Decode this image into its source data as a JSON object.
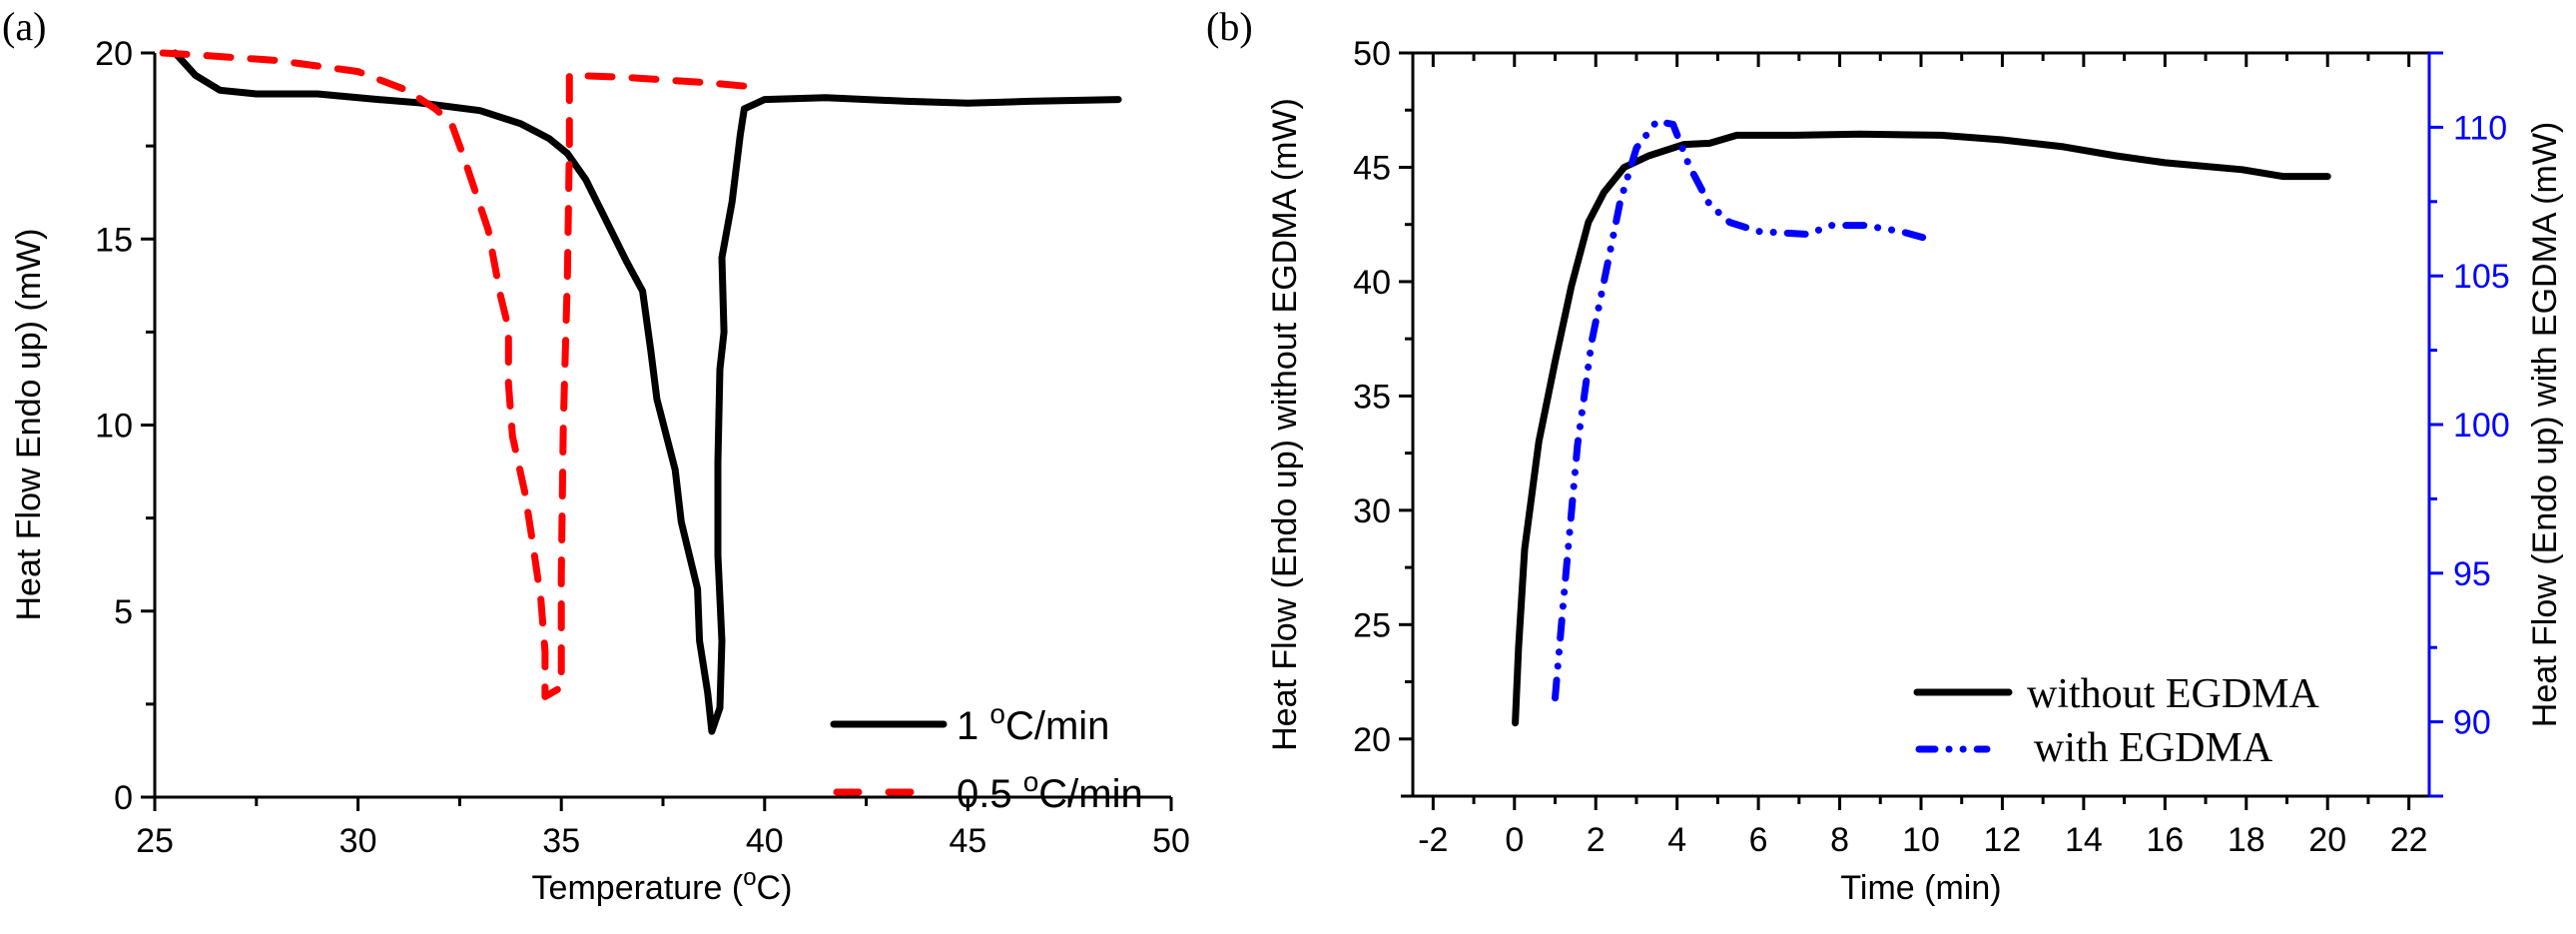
{
  "chart_data": [
    {
      "panel_label": "(a)",
      "type": "line",
      "title": "",
      "xlabel": "Temperature (°C)",
      "xlabel_parts": {
        "pre": "Temperature (",
        "sup": "o",
        "post": "C)"
      },
      "ylabel": "Heat Flow Endo up) (mW)",
      "xlim": [
        25,
        50
      ],
      "ylim": [
        0,
        20
      ],
      "xticks": [
        25,
        30,
        35,
        40,
        45,
        50
      ],
      "xtick_labels": [
        "25",
        "30",
        "35",
        "40",
        "45",
        "50"
      ],
      "yticks": [
        0,
        5,
        10,
        15,
        20
      ],
      "ytick_labels": [
        "0",
        "5",
        "10",
        "15",
        "20"
      ],
      "grid": false,
      "legend_position": "bottom-right",
      "series": [
        {
          "name": "1 °C/min",
          "legend": {
            "pre": "1 ",
            "sup": "o",
            "post": "C/min"
          },
          "color": "#000000",
          "style": "solid",
          "points": [
            [
              25.5,
              20.0
            ],
            [
              26.0,
              19.4
            ],
            [
              26.6,
              19.0
            ],
            [
              27.5,
              18.9
            ],
            [
              29.0,
              18.9
            ],
            [
              30.5,
              18.75
            ],
            [
              31.5,
              18.66
            ],
            [
              33.0,
              18.45
            ],
            [
              34.0,
              18.1
            ],
            [
              34.7,
              17.7
            ],
            [
              35.15,
              17.3
            ],
            [
              35.6,
              16.6
            ],
            [
              36.1,
              15.5
            ],
            [
              36.6,
              14.4
            ],
            [
              37.0,
              13.6
            ],
            [
              37.2,
              12.0
            ],
            [
              37.35,
              10.7
            ],
            [
              37.8,
              8.8
            ],
            [
              37.95,
              7.4
            ],
            [
              38.35,
              5.6
            ],
            [
              38.4,
              4.2
            ],
            [
              38.6,
              2.8
            ],
            [
              38.7,
              1.77
            ],
            [
              38.9,
              2.4
            ],
            [
              38.95,
              4.2
            ],
            [
              38.85,
              6.5
            ],
            [
              38.85,
              9.0
            ],
            [
              38.9,
              11.5
            ],
            [
              39.0,
              12.5
            ],
            [
              38.95,
              14.5
            ],
            [
              39.2,
              16.0
            ],
            [
              39.4,
              17.8
            ],
            [
              39.5,
              18.5
            ],
            [
              40.0,
              18.75
            ],
            [
              41.5,
              18.8
            ],
            [
              43.5,
              18.7
            ],
            [
              45.0,
              18.65
            ],
            [
              46.5,
              18.7
            ],
            [
              48.7,
              18.75
            ]
          ]
        },
        {
          "name": "0.5 °C/min",
          "legend": {
            "pre": "0.5 ",
            "sup": "o",
            "post": "C/min"
          },
          "color": "#ff0000",
          "style": "dashed",
          "points": [
            [
              25.2,
              20.0
            ],
            [
              26.0,
              19.95
            ],
            [
              28.0,
              19.8
            ],
            [
              30.0,
              19.5
            ],
            [
              31.2,
              19.0
            ],
            [
              31.9,
              18.5
            ],
            [
              32.3,
              18.1
            ],
            [
              32.6,
              17.2
            ],
            [
              33.2,
              15.25
            ],
            [
              33.5,
              13.5
            ],
            [
              33.7,
              12.6
            ],
            [
              33.7,
              11.1
            ],
            [
              33.8,
              9.7
            ],
            [
              34.1,
              8.2
            ],
            [
              34.3,
              6.8
            ],
            [
              34.5,
              5.3
            ],
            [
              34.6,
              3.9
            ],
            [
              34.6,
              2.7
            ],
            [
              35.0,
              2.95
            ],
            [
              35.0,
              6.0
            ],
            [
              35.05,
              10.0
            ],
            [
              35.15,
              14.0
            ],
            [
              35.2,
              17.5
            ],
            [
              35.2,
              19.4
            ],
            [
              36.5,
              19.35
            ],
            [
              38.6,
              19.2
            ],
            [
              39.6,
              19.1
            ]
          ]
        }
      ]
    },
    {
      "panel_label": "(b)",
      "type": "line",
      "title": "",
      "xlabel": "Time (min)",
      "ylabel": "Heat Flow (Endo up) without EGDMA (mW)",
      "ylabel_right": "Heat Flow (Endo up) with EGDMA (mW)",
      "xlim": [
        -2.5,
        22.5
      ],
      "ylim": [
        17.5,
        50
      ],
      "ylim_right": [
        87.5,
        112.5
      ],
      "xticks": [
        -2,
        0,
        2,
        4,
        6,
        8,
        10,
        12,
        14,
        16,
        18,
        20,
        22
      ],
      "xtick_labels": [
        "-2",
        "0",
        "2",
        "4",
        "6",
        "8",
        "10",
        "12",
        "14",
        "16",
        "18",
        "20",
        "22"
      ],
      "yticks": [
        20,
        25,
        30,
        35,
        40,
        45,
        50
      ],
      "ytick_labels": [
        "20",
        "25",
        "30",
        "35",
        "40",
        "45",
        "50"
      ],
      "yticks_right": [
        90,
        95,
        100,
        105,
        110
      ],
      "ytick_labels_right": [
        "90",
        "95",
        "100",
        "105",
        "110"
      ],
      "right_axis_color": "#0000ff",
      "grid": false,
      "legend_position": "bottom-right",
      "series": [
        {
          "name": "without EGDMA",
          "color": "#000000",
          "style": "solid",
          "axis": "left",
          "points": [
            [
              0.02,
              20.7
            ],
            [
              0.1,
              24.0
            ],
            [
              0.25,
              28.3
            ],
            [
              0.6,
              33.0
            ],
            [
              1.0,
              36.5
            ],
            [
              1.4,
              39.8
            ],
            [
              1.82,
              42.6
            ],
            [
              2.2,
              43.9
            ],
            [
              2.7,
              45.0
            ],
            [
              3.3,
              45.5
            ],
            [
              4.17,
              46.0
            ],
            [
              4.8,
              46.05
            ],
            [
              5.47,
              46.4
            ],
            [
              6.9,
              46.4
            ],
            [
              8.5,
              46.45
            ],
            [
              10.5,
              46.4
            ],
            [
              12.0,
              46.2
            ],
            [
              13.5,
              45.9
            ],
            [
              14.8,
              45.5
            ],
            [
              16.0,
              45.2
            ],
            [
              17.9,
              44.9
            ],
            [
              18.9,
              44.6
            ],
            [
              20.0,
              44.6
            ]
          ]
        },
        {
          "name": "with EGDMA",
          "color": "#0000ff",
          "style": "dash-dot-dot",
          "axis": "right",
          "points": [
            [
              1.0,
              90.8
            ],
            [
              1.2,
              94.0
            ],
            [
              1.55,
              99.3
            ],
            [
              1.9,
              102.8
            ],
            [
              2.2,
              104.8
            ],
            [
              2.6,
              107.5
            ],
            [
              3.0,
              109.3
            ],
            [
              3.5,
              110.2
            ],
            [
              3.9,
              110.1
            ],
            [
              4.3,
              108.7
            ],
            [
              4.8,
              107.4
            ],
            [
              5.3,
              106.8
            ],
            [
              6.0,
              106.5
            ],
            [
              7.2,
              106.4
            ],
            [
              7.8,
              106.7
            ],
            [
              8.6,
              106.7
            ],
            [
              9.5,
              106.5
            ],
            [
              10.3,
              106.2
            ]
          ]
        }
      ]
    }
  ]
}
